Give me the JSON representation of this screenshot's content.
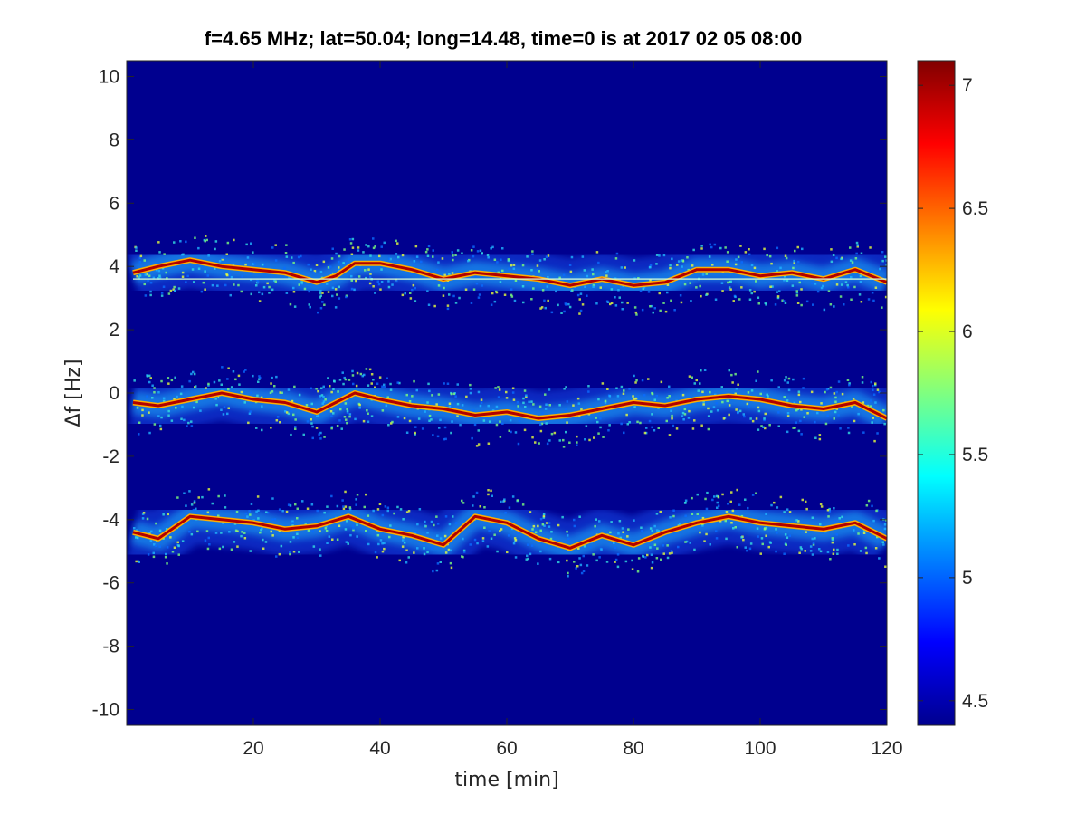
{
  "chart_data": {
    "type": "heatmap",
    "title": "f=4.65 MHz;  lat=50.04; long=14.48, time=0 is at 2017 02 05 08:00",
    "xlabel": "time [min]",
    "ylabel": "Δf [Hz]",
    "xlim": [
      0,
      120
    ],
    "ylim": [
      -10.5,
      10.5
    ],
    "x_ticks": [
      20,
      40,
      60,
      80,
      100,
      120
    ],
    "y_ticks": [
      -10,
      -8,
      -6,
      -4,
      -2,
      0,
      2,
      4,
      6,
      8,
      10
    ],
    "colorbar": {
      "colormap": "jet",
      "clim": [
        4.4,
        7.1
      ],
      "ticks": [
        4.5,
        5,
        5.5,
        6,
        6.5,
        7
      ]
    },
    "background_value": 4.4,
    "traces": [
      {
        "name": "",
        "points": [
          [
            1,
            3.8
          ],
          [
            5,
            4.0
          ],
          [
            10,
            4.2
          ],
          [
            15,
            4.0
          ],
          [
            20,
            3.9
          ],
          [
            25,
            3.8
          ],
          [
            30,
            3.5
          ],
          [
            33,
            3.7
          ],
          [
            36,
            4.1
          ],
          [
            40,
            4.1
          ],
          [
            45,
            3.9
          ],
          [
            50,
            3.6
          ],
          [
            55,
            3.8
          ],
          [
            60,
            3.7
          ],
          [
            65,
            3.6
          ],
          [
            70,
            3.4
          ],
          [
            75,
            3.6
          ],
          [
            80,
            3.4
          ],
          [
            85,
            3.5
          ],
          [
            90,
            3.9
          ],
          [
            95,
            3.9
          ],
          [
            100,
            3.7
          ],
          [
            105,
            3.8
          ],
          [
            110,
            3.6
          ],
          [
            115,
            3.9
          ],
          [
            120,
            3.5
          ]
        ]
      },
      {
        "name": "",
        "points": [
          [
            1,
            -0.3
          ],
          [
            5,
            -0.4
          ],
          [
            10,
            -0.2
          ],
          [
            15,
            0.0
          ],
          [
            20,
            -0.2
          ],
          [
            25,
            -0.3
          ],
          [
            30,
            -0.6
          ],
          [
            33,
            -0.3
          ],
          [
            36,
            0.0
          ],
          [
            40,
            -0.2
          ],
          [
            45,
            -0.4
          ],
          [
            50,
            -0.5
          ],
          [
            55,
            -0.7
          ],
          [
            60,
            -0.6
          ],
          [
            65,
            -0.8
          ],
          [
            70,
            -0.7
          ],
          [
            75,
            -0.5
          ],
          [
            80,
            -0.3
          ],
          [
            85,
            -0.4
          ],
          [
            90,
            -0.2
          ],
          [
            95,
            -0.1
          ],
          [
            100,
            -0.2
          ],
          [
            105,
            -0.4
          ],
          [
            110,
            -0.5
          ],
          [
            115,
            -0.3
          ],
          [
            120,
            -0.8
          ]
        ]
      },
      {
        "name": "",
        "points": [
          [
            1,
            -4.4
          ],
          [
            5,
            -4.6
          ],
          [
            10,
            -3.9
          ],
          [
            15,
            -4.0
          ],
          [
            20,
            -4.1
          ],
          [
            25,
            -4.3
          ],
          [
            30,
            -4.2
          ],
          [
            35,
            -3.9
          ],
          [
            40,
            -4.3
          ],
          [
            45,
            -4.5
          ],
          [
            50,
            -4.8
          ],
          [
            55,
            -3.9
          ],
          [
            60,
            -4.1
          ],
          [
            65,
            -4.6
          ],
          [
            70,
            -4.9
          ],
          [
            75,
            -4.5
          ],
          [
            80,
            -4.8
          ],
          [
            85,
            -4.4
          ],
          [
            90,
            -4.1
          ],
          [
            95,
            -3.9
          ],
          [
            100,
            -4.1
          ],
          [
            105,
            -4.2
          ],
          [
            110,
            -4.3
          ],
          [
            115,
            -4.1
          ],
          [
            120,
            -4.6
          ]
        ]
      }
    ],
    "baseline_line": {
      "y": 3.6,
      "x_range": [
        1,
        120
      ]
    }
  }
}
